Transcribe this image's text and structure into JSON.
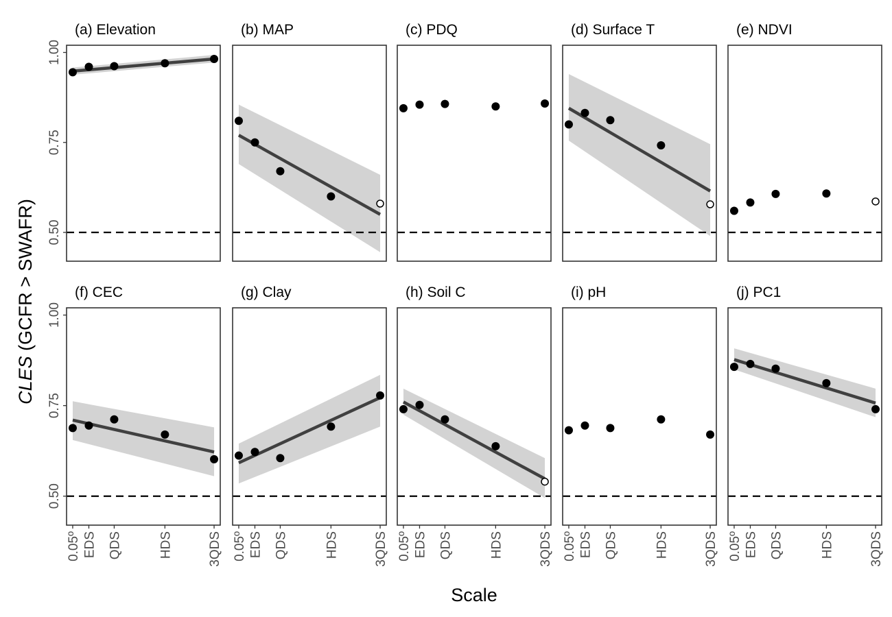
{
  "figure": {
    "ylabel_italic": "CLES",
    "ylabel_rest": " (GCFR > SWAFR)",
    "xlabel": "Scale",
    "x_ticks": [
      "0.05º",
      "EDS",
      "QDS",
      "HDS",
      "3QDS"
    ],
    "y_ticks": [
      "0.50",
      "0.75",
      "1.00"
    ],
    "colors": {
      "point": "#000000",
      "line": "#404040",
      "band": "#d3d3d3",
      "frame": "#333333",
      "tick_text": "#4d4d4d"
    }
  },
  "chart_data": [
    {
      "type": "scatter",
      "title": "(a) Elevation",
      "x": [
        "0.05º",
        "EDS",
        "QDS",
        "HDS",
        "3QDS"
      ],
      "y": [
        0.945,
        0.96,
        0.962,
        0.97,
        0.982
      ],
      "hollow": [
        false,
        false,
        false,
        false,
        false
      ],
      "ylim": [
        0.42,
        1.02
      ],
      "hline": 0.5,
      "fit": true,
      "fit_line": [
        0.948,
        0.982
      ],
      "ci_low": [
        0.938,
        0.972
      ],
      "ci_high": [
        0.958,
        0.993
      ]
    },
    {
      "type": "scatter",
      "title": "(b) MAP",
      "x": [
        "0.05º",
        "EDS",
        "QDS",
        "HDS",
        "3QDS"
      ],
      "y": [
        0.81,
        0.75,
        0.67,
        0.6,
        0.58
      ],
      "hollow": [
        false,
        false,
        false,
        false,
        true
      ],
      "ylim": [
        0.42,
        1.02
      ],
      "hline": 0.5,
      "fit": true,
      "fit_line": [
        0.77,
        0.55
      ],
      "ci_low": [
        0.69,
        0.445
      ],
      "ci_high": [
        0.855,
        0.66
      ]
    },
    {
      "type": "scatter",
      "title": "(c) PDQ",
      "x": [
        "0.05º",
        "EDS",
        "QDS",
        "HDS",
        "3QDS"
      ],
      "y": [
        0.845,
        0.855,
        0.857,
        0.85,
        0.858
      ],
      "hollow": [
        false,
        false,
        false,
        false,
        false
      ],
      "ylim": [
        0.42,
        1.02
      ],
      "hline": 0.5,
      "fit": false
    },
    {
      "type": "scatter",
      "title": "(d) Surface T",
      "x": [
        "0.05º",
        "EDS",
        "QDS",
        "HDS",
        "3QDS"
      ],
      "y": [
        0.8,
        0.832,
        0.812,
        0.742,
        0.578
      ],
      "hollow": [
        false,
        false,
        false,
        false,
        true
      ],
      "ylim": [
        0.42,
        1.02
      ],
      "hline": 0.5,
      "fit": true,
      "fit_line": [
        0.845,
        0.615
      ],
      "ci_low": [
        0.755,
        0.49
      ],
      "ci_high": [
        0.94,
        0.745
      ]
    },
    {
      "type": "scatter",
      "title": "(e) NDVI",
      "x": [
        "0.05º",
        "EDS",
        "QDS",
        "HDS",
        "3QDS"
      ],
      "y": [
        0.56,
        0.583,
        0.607,
        0.608,
        0.586
      ],
      "hollow": [
        false,
        false,
        false,
        false,
        true
      ],
      "ylim": [
        0.42,
        1.02
      ],
      "hline": 0.5,
      "fit": false
    },
    {
      "type": "scatter",
      "title": "(f) CEC",
      "x": [
        "0.05º",
        "EDS",
        "QDS",
        "HDS",
        "3QDS"
      ],
      "y": [
        0.688,
        0.695,
        0.712,
        0.67,
        0.602
      ],
      "hollow": [
        false,
        false,
        false,
        false,
        false
      ],
      "ylim": [
        0.42,
        1.02
      ],
      "hline": 0.5,
      "fit": true,
      "fit_line": [
        0.71,
        0.622
      ],
      "ci_low": [
        0.655,
        0.555
      ],
      "ci_high": [
        0.762,
        0.69
      ]
    },
    {
      "type": "scatter",
      "title": "(g) Clay",
      "x": [
        "0.05º",
        "EDS",
        "QDS",
        "HDS",
        "3QDS"
      ],
      "y": [
        0.612,
        0.622,
        0.605,
        0.692,
        0.778
      ],
      "hollow": [
        false,
        false,
        false,
        false,
        false
      ],
      "ylim": [
        0.42,
        1.02
      ],
      "hline": 0.5,
      "fit": true,
      "fit_line": [
        0.592,
        0.772
      ],
      "ci_low": [
        0.535,
        0.692
      ],
      "ci_high": [
        0.645,
        0.835
      ]
    },
    {
      "type": "scatter",
      "title": "(h) Soil C",
      "x": [
        "0.05º",
        "EDS",
        "QDS",
        "HDS",
        "3QDS"
      ],
      "y": [
        0.74,
        0.752,
        0.712,
        0.638,
        0.54
      ],
      "hollow": [
        false,
        false,
        false,
        false,
        true
      ],
      "ylim": [
        0.42,
        1.02
      ],
      "hline": 0.5,
      "fit": true,
      "fit_line": [
        0.76,
        0.548
      ],
      "ci_low": [
        0.725,
        0.495
      ],
      "ci_high": [
        0.797,
        0.605
      ]
    },
    {
      "type": "scatter",
      "title": "(i) pH",
      "x": [
        "0.05º",
        "EDS",
        "QDS",
        "HDS",
        "3QDS"
      ],
      "y": [
        0.682,
        0.695,
        0.688,
        0.712,
        0.67
      ],
      "hollow": [
        false,
        false,
        false,
        false,
        false
      ],
      "ylim": [
        0.42,
        1.02
      ],
      "hline": 0.5,
      "fit": false
    },
    {
      "type": "scatter",
      "title": "(j) PC1",
      "x": [
        "0.05º",
        "EDS",
        "QDS",
        "HDS",
        "3QDS"
      ],
      "y": [
        0.857,
        0.865,
        0.852,
        0.812,
        0.74
      ],
      "hollow": [
        false,
        false,
        false,
        false,
        false
      ],
      "ylim": [
        0.42,
        1.02
      ],
      "hline": 0.5,
      "fit": true,
      "fit_line": [
        0.877,
        0.757
      ],
      "ci_low": [
        0.85,
        0.718
      ],
      "ci_high": [
        0.908,
        0.797
      ]
    }
  ]
}
